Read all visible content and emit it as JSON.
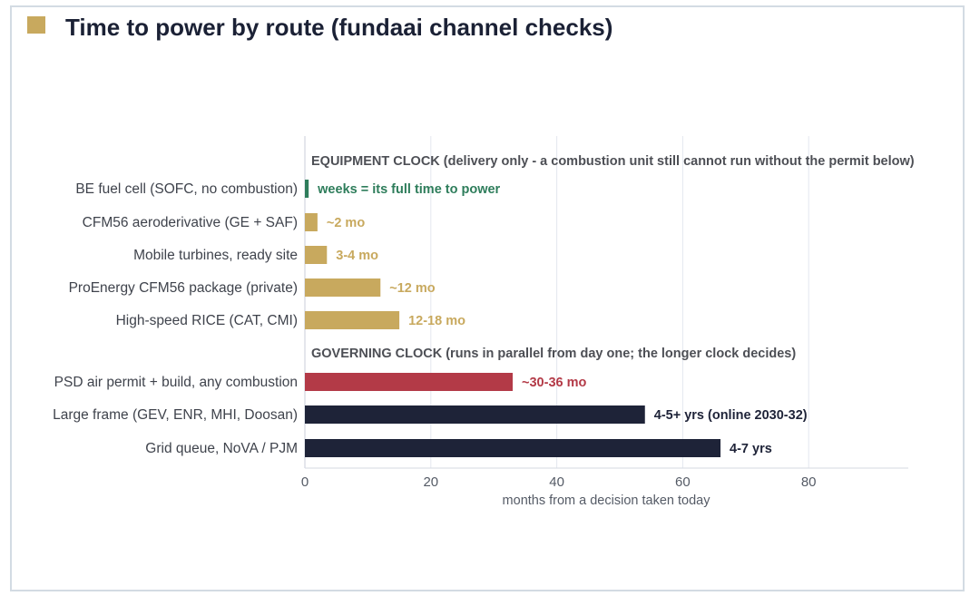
{
  "title": "Time to power by route (fundaai channel checks)",
  "title_marker_color": "#c8a95e",
  "chart_data": {
    "type": "bar",
    "orientation": "horizontal",
    "xlabel": "months from a decision taken today",
    "xlim": [
      0,
      96
    ],
    "xticks": [
      0,
      20,
      40,
      60,
      80
    ],
    "grid": true,
    "sections": [
      {
        "header": "EQUIPMENT CLOCK  (delivery only - a combustion unit still cannot run without the permit below)",
        "bars": [
          {
            "label": "BE fuel cell (SOFC, no combustion)",
            "value": 0.6,
            "annotation": "weeks = its full time to power",
            "color": "#2e7d5b"
          },
          {
            "label": "CFM56 aeroderivative (GE + SAF)",
            "value": 2,
            "annotation": "~2 mo",
            "color": "#c8a95e"
          },
          {
            "label": "Mobile turbines, ready site",
            "value": 3.5,
            "annotation": "3-4 mo",
            "color": "#c8a95e"
          },
          {
            "label": "ProEnergy CFM56 package (private)",
            "value": 12,
            "annotation": "~12 mo",
            "color": "#c8a95e"
          },
          {
            "label": "High-speed RICE (CAT, CMI)",
            "value": 15,
            "annotation": "12-18 mo",
            "color": "#c8a95e"
          }
        ]
      },
      {
        "header": "GOVERNING CLOCK  (runs in parallel from day one; the longer clock decides)",
        "bars": [
          {
            "label": "PSD air permit + build, any combustion",
            "value": 33,
            "annotation": "~30-36 mo",
            "color": "#b33a47"
          },
          {
            "label": "Large frame (GEV, ENR, MHI, Doosan)",
            "value": 54,
            "annotation": "4-5+ yrs (online 2030-32)",
            "color": "#1e2338"
          },
          {
            "label": "Grid queue, NoVA / PJM",
            "value": 66,
            "annotation": "4-7 yrs",
            "color": "#1e2338"
          }
        ]
      }
    ]
  }
}
